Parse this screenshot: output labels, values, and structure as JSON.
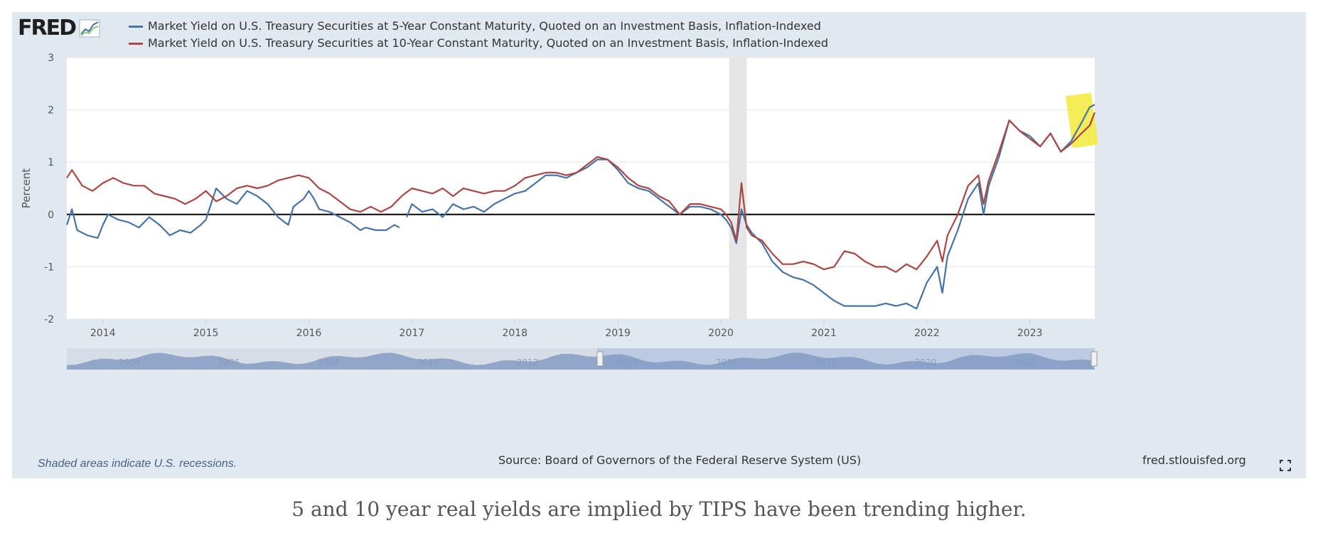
{
  "logo": {
    "text": "FRED",
    "icon": "fred-graph-icon"
  },
  "legend": [
    {
      "label": "Market Yield on U.S. Treasury Securities at 5-Year Constant Maturity, Quoted on an Investment Basis, Inflation-Indexed",
      "color": "#4572a7"
    },
    {
      "label": "Market Yield on U.S. Treasury Securities at 10-Year Constant Maturity, Quoted on an Investment Basis, Inflation-Indexed",
      "color": "#aa4643"
    }
  ],
  "footer": {
    "note": "Shaded areas indicate U.S. recessions.",
    "source": "Source: Board of Governors of the Federal Reserve System (US)",
    "site": "fred.stlouisfed.org",
    "fullscreen_icon": "fullscreen-icon"
  },
  "caption": "5 and 10 year real yields are implied by TIPS have been trending higher.",
  "chart_data": {
    "type": "line",
    "title": "",
    "xlabel": "",
    "ylabel": "Percent",
    "xlim": [
      2013.65,
      2023.63
    ],
    "ylim": [
      -2,
      3
    ],
    "yticks": [
      -2,
      -1,
      0,
      1,
      2,
      3
    ],
    "ytick_labels": [
      "-2",
      "-1",
      "0",
      "1",
      "2",
      "3"
    ],
    "xticks": [
      2014,
      2015,
      2016,
      2017,
      2018,
      2019,
      2020,
      2021,
      2022,
      2023
    ],
    "xtick_labels": [
      "2014",
      "2015",
      "2016",
      "2017",
      "2018",
      "2019",
      "2020",
      "2021",
      "2022",
      "2023"
    ],
    "grid": true,
    "zero_line": true,
    "recession_band": [
      2020.08,
      2020.25
    ],
    "highlight": {
      "x": [
        2023.38,
        2023.63
      ],
      "y": [
        1.3,
        2.3
      ],
      "color": "#f2ea3a"
    },
    "navigator_labels": [
      "2004",
      "2006",
      "2008",
      "2010",
      "2012",
      "2014",
      "2016",
      "2018",
      "2020",
      "2022"
    ],
    "series": [
      {
        "name": "Market Yield on U.S. Treasury Securities at 5-Year Constant Maturity, Quoted on an Investment Basis, Inflation-Indexed",
        "color": "#4572a7",
        "segments": [
          [
            [
              2013.65,
              -0.2
            ],
            [
              2013.7,
              0.1
            ],
            [
              2013.75,
              -0.3
            ],
            [
              2013.85,
              -0.4
            ],
            [
              2013.95,
              -0.45
            ],
            [
              2014.0,
              -0.2
            ],
            [
              2014.05,
              0.0
            ],
            [
              2014.15,
              -0.1
            ],
            [
              2014.25,
              -0.15
            ],
            [
              2014.35,
              -0.25
            ],
            [
              2014.45,
              -0.05
            ],
            [
              2014.55,
              -0.2
            ],
            [
              2014.65,
              -0.4
            ],
            [
              2014.75,
              -0.3
            ],
            [
              2014.85,
              -0.35
            ],
            [
              2014.95,
              -0.2
            ],
            [
              2015.0,
              -0.1
            ],
            [
              2015.05,
              0.2
            ],
            [
              2015.1,
              0.5
            ],
            [
              2015.2,
              0.3
            ],
            [
              2015.3,
              0.2
            ],
            [
              2015.4,
              0.45
            ],
            [
              2015.5,
              0.35
            ],
            [
              2015.6,
              0.2
            ],
            [
              2015.7,
              -0.05
            ],
            [
              2015.8,
              -0.2
            ],
            [
              2015.85,
              0.15
            ],
            [
              2015.95,
              0.3
            ],
            [
              2016.0,
              0.45
            ],
            [
              2016.05,
              0.3
            ],
            [
              2016.1,
              0.1
            ],
            [
              2016.2,
              0.05
            ],
            [
              2016.3,
              -0.05
            ],
            [
              2016.4,
              -0.15
            ],
            [
              2016.5,
              -0.3
            ],
            [
              2016.55,
              -0.25
            ],
            [
              2016.65,
              -0.3
            ],
            [
              2016.75,
              -0.3
            ],
            [
              2016.83,
              -0.2
            ],
            [
              2016.88,
              -0.25
            ]
          ],
          [
            [
              2016.95,
              -0.05
            ],
            [
              2017.0,
              0.2
            ],
            [
              2017.1,
              0.05
            ],
            [
              2017.2,
              0.1
            ],
            [
              2017.3,
              -0.05
            ],
            [
              2017.4,
              0.2
            ],
            [
              2017.5,
              0.1
            ],
            [
              2017.6,
              0.15
            ],
            [
              2017.7,
              0.05
            ],
            [
              2017.8,
              0.2
            ],
            [
              2017.9,
              0.3
            ],
            [
              2018.0,
              0.4
            ],
            [
              2018.1,
              0.45
            ],
            [
              2018.2,
              0.6
            ],
            [
              2018.3,
              0.75
            ],
            [
              2018.4,
              0.75
            ],
            [
              2018.5,
              0.7
            ],
            [
              2018.6,
              0.8
            ],
            [
              2018.7,
              0.9
            ],
            [
              2018.8,
              1.05
            ],
            [
              2018.9,
              1.05
            ],
            [
              2019.0,
              0.85
            ],
            [
              2019.1,
              0.6
            ],
            [
              2019.2,
              0.5
            ],
            [
              2019.3,
              0.45
            ],
            [
              2019.4,
              0.3
            ],
            [
              2019.5,
              0.15
            ],
            [
              2019.6,
              0.0
            ],
            [
              2019.7,
              0.15
            ],
            [
              2019.8,
              0.15
            ],
            [
              2019.9,
              0.1
            ],
            [
              2020.0,
              0.0
            ],
            [
              2020.05,
              -0.1
            ],
            [
              2020.1,
              -0.25
            ],
            [
              2020.15,
              -0.55
            ],
            [
              2020.2,
              0.1
            ],
            [
              2020.25,
              -0.2
            ],
            [
              2020.3,
              -0.35
            ],
            [
              2020.4,
              -0.55
            ],
            [
              2020.5,
              -0.9
            ],
            [
              2020.6,
              -1.1
            ],
            [
              2020.7,
              -1.2
            ],
            [
              2020.8,
              -1.25
            ],
            [
              2020.9,
              -1.35
            ],
            [
              2021.0,
              -1.5
            ],
            [
              2021.1,
              -1.65
            ],
            [
              2021.2,
              -1.75
            ],
            [
              2021.3,
              -1.75
            ],
            [
              2021.4,
              -1.75
            ],
            [
              2021.5,
              -1.75
            ],
            [
              2021.6,
              -1.7
            ],
            [
              2021.7,
              -1.75
            ],
            [
              2021.8,
              -1.7
            ],
            [
              2021.9,
              -1.8
            ],
            [
              2022.0,
              -1.3
            ],
            [
              2022.1,
              -1.0
            ],
            [
              2022.15,
              -1.5
            ],
            [
              2022.2,
              -0.8
            ],
            [
              2022.3,
              -0.3
            ],
            [
              2022.4,
              0.3
            ],
            [
              2022.5,
              0.6
            ],
            [
              2022.55,
              0.0
            ],
            [
              2022.6,
              0.55
            ],
            [
              2022.7,
              1.1
            ],
            [
              2022.8,
              1.8
            ],
            [
              2022.9,
              1.6
            ],
            [
              2023.0,
              1.5
            ],
            [
              2023.1,
              1.3
            ],
            [
              2023.2,
              1.55
            ],
            [
              2023.3,
              1.2
            ],
            [
              2023.4,
              1.4
            ],
            [
              2023.5,
              1.75
            ],
            [
              2023.58,
              2.05
            ],
            [
              2023.63,
              2.1
            ]
          ]
        ]
      },
      {
        "name": "Market Yield on U.S. Treasury Securities at 10-Year Constant Maturity, Quoted on an Investment Basis, Inflation-Indexed",
        "color": "#aa4643",
        "segments": [
          [
            [
              2013.65,
              0.7
            ],
            [
              2013.7,
              0.85
            ],
            [
              2013.8,
              0.55
            ],
            [
              2013.9,
              0.45
            ],
            [
              2014.0,
              0.6
            ],
            [
              2014.1,
              0.7
            ],
            [
              2014.2,
              0.6
            ],
            [
              2014.3,
              0.55
            ],
            [
              2014.4,
              0.55
            ],
            [
              2014.5,
              0.4
            ],
            [
              2014.6,
              0.35
            ],
            [
              2014.7,
              0.3
            ],
            [
              2014.8,
              0.2
            ],
            [
              2014.9,
              0.3
            ],
            [
              2015.0,
              0.45
            ],
            [
              2015.1,
              0.25
            ],
            [
              2015.2,
              0.35
            ],
            [
              2015.3,
              0.5
            ],
            [
              2015.4,
              0.55
            ],
            [
              2015.5,
              0.5
            ],
            [
              2015.6,
              0.55
            ],
            [
              2015.7,
              0.65
            ],
            [
              2015.8,
              0.7
            ],
            [
              2015.9,
              0.75
            ],
            [
              2016.0,
              0.7
            ],
            [
              2016.1,
              0.5
            ],
            [
              2016.2,
              0.4
            ],
            [
              2016.3,
              0.25
            ],
            [
              2016.4,
              0.1
            ],
            [
              2016.5,
              0.05
            ],
            [
              2016.6,
              0.15
            ],
            [
              2016.7,
              0.05
            ],
            [
              2016.8,
              0.15
            ],
            [
              2016.9,
              0.35
            ],
            [
              2017.0,
              0.5
            ],
            [
              2017.1,
              0.45
            ],
            [
              2017.2,
              0.4
            ],
            [
              2017.3,
              0.5
            ],
            [
              2017.4,
              0.35
            ],
            [
              2017.5,
              0.5
            ],
            [
              2017.6,
              0.45
            ],
            [
              2017.7,
              0.4
            ],
            [
              2017.8,
              0.45
            ],
            [
              2017.9,
              0.45
            ],
            [
              2018.0,
              0.55
            ],
            [
              2018.1,
              0.7
            ],
            [
              2018.2,
              0.75
            ],
            [
              2018.3,
              0.8
            ],
            [
              2018.4,
              0.8
            ],
            [
              2018.5,
              0.75
            ],
            [
              2018.6,
              0.8
            ],
            [
              2018.7,
              0.95
            ],
            [
              2018.8,
              1.1
            ],
            [
              2018.9,
              1.05
            ],
            [
              2019.0,
              0.9
            ],
            [
              2019.1,
              0.7
            ],
            [
              2019.2,
              0.55
            ],
            [
              2019.3,
              0.5
            ],
            [
              2019.4,
              0.35
            ],
            [
              2019.5,
              0.25
            ],
            [
              2019.6,
              0.0
            ],
            [
              2019.7,
              0.2
            ],
            [
              2019.8,
              0.2
            ],
            [
              2019.9,
              0.15
            ],
            [
              2020.0,
              0.1
            ],
            [
              2020.05,
              0.0
            ],
            [
              2020.1,
              -0.15
            ],
            [
              2020.15,
              -0.5
            ],
            [
              2020.2,
              0.6
            ],
            [
              2020.25,
              -0.25
            ],
            [
              2020.3,
              -0.4
            ],
            [
              2020.4,
              -0.5
            ],
            [
              2020.5,
              -0.75
            ],
            [
              2020.6,
              -0.95
            ],
            [
              2020.7,
              -0.95
            ],
            [
              2020.8,
              -0.9
            ],
            [
              2020.9,
              -0.95
            ],
            [
              2021.0,
              -1.05
            ],
            [
              2021.1,
              -1.0
            ],
            [
              2021.2,
              -0.7
            ],
            [
              2021.3,
              -0.75
            ],
            [
              2021.4,
              -0.9
            ],
            [
              2021.5,
              -1.0
            ],
            [
              2021.6,
              -1.0
            ],
            [
              2021.7,
              -1.1
            ],
            [
              2021.8,
              -0.95
            ],
            [
              2021.9,
              -1.05
            ],
            [
              2022.0,
              -0.8
            ],
            [
              2022.1,
              -0.5
            ],
            [
              2022.15,
              -0.9
            ],
            [
              2022.2,
              -0.4
            ],
            [
              2022.3,
              0.0
            ],
            [
              2022.4,
              0.55
            ],
            [
              2022.5,
              0.75
            ],
            [
              2022.55,
              0.2
            ],
            [
              2022.6,
              0.65
            ],
            [
              2022.7,
              1.2
            ],
            [
              2022.8,
              1.8
            ],
            [
              2022.9,
              1.6
            ],
            [
              2023.0,
              1.45
            ],
            [
              2023.1,
              1.3
            ],
            [
              2023.2,
              1.55
            ],
            [
              2023.3,
              1.2
            ],
            [
              2023.4,
              1.35
            ],
            [
              2023.5,
              1.55
            ],
            [
              2023.58,
              1.7
            ],
            [
              2023.63,
              1.95
            ]
          ]
        ]
      }
    ]
  }
}
